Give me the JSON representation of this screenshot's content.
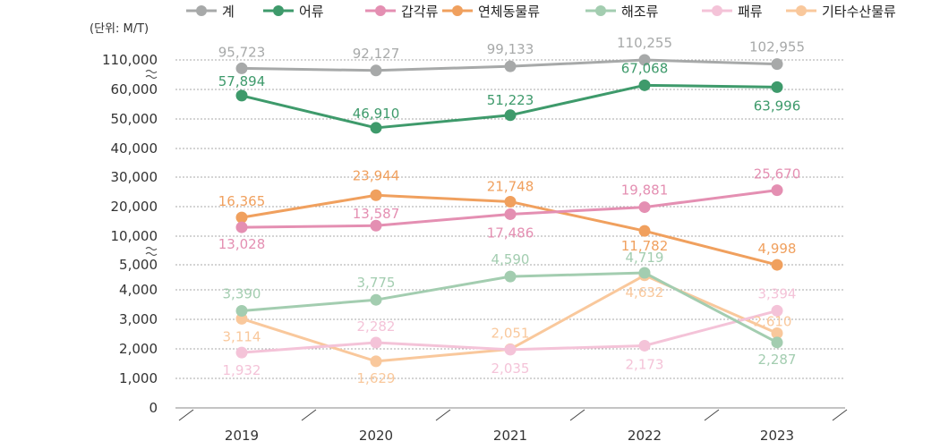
{
  "chart_data": {
    "type": "line",
    "unit_label": "(단위: M/T)",
    "categories": [
      "2019",
      "2020",
      "2021",
      "2022",
      "2023"
    ],
    "y_tick_labels": [
      "0",
      "1,000",
      "2,000",
      "3,000",
      "4,000",
      "5,000",
      "10,000",
      "20,000",
      "30,000",
      "40,000",
      "50,000",
      "60,000",
      "110,000"
    ],
    "axis_break_after": [
      "5,000",
      "60,000"
    ],
    "grid": true,
    "legend_position": "top",
    "series": [
      {
        "name": "계",
        "color": "#a7a9a9",
        "values": [
          95723,
          92127,
          99133,
          110255,
          102955
        ],
        "labels": [
          "95,723",
          "92,127",
          "99,133",
          "110,255",
          "102,955"
        ]
      },
      {
        "name": "어류",
        "color": "#3e9a6b",
        "values": [
          57894,
          46910,
          51223,
          67068,
          63996
        ],
        "labels": [
          "57,894",
          "46,910",
          "51,223",
          "67,068",
          "63,996"
        ]
      },
      {
        "name": "갑각류",
        "color": "#e48fb2",
        "values": [
          13028,
          13587,
          17486,
          19881,
          25670
        ],
        "labels": [
          "13,028",
          "13,587",
          "17,486",
          "19,881",
          "25,670"
        ]
      },
      {
        "name": "연체동물류",
        "color": "#f0a05e",
        "values": [
          16365,
          23944,
          21748,
          11782,
          4998
        ],
        "labels": [
          "16,365",
          "23,944",
          "21,748",
          "11,782",
          "4,998"
        ]
      },
      {
        "name": "해조류",
        "color": "#a3cdb0",
        "values": [
          3390,
          3775,
          4590,
          4719,
          2287
        ],
        "labels": [
          "3,390",
          "3,775",
          "4,590",
          "4,719",
          "2,287"
        ]
      },
      {
        "name": "패류",
        "color": "#f4c3d8",
        "values": [
          1932,
          2282,
          2035,
          2173,
          3394
        ],
        "labels": [
          "1,932",
          "2,282",
          "2,035",
          "2,173",
          "3,394"
        ]
      },
      {
        "name": "기타수산물류",
        "color": "#f9c89c",
        "values": [
          3114,
          1629,
          2051,
          4632,
          2610
        ],
        "labels": [
          "3,114",
          "1,629",
          "2,051",
          "4,632",
          "2,610"
        ]
      }
    ]
  }
}
